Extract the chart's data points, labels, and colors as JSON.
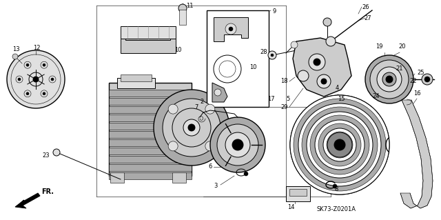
{
  "bg_color": "#ffffff",
  "line_color": "#000000",
  "fig_width": 6.4,
  "fig_height": 3.19,
  "dpi": 100,
  "diagram_code": "SK73-Z0201A",
  "fr_label": "FR."
}
